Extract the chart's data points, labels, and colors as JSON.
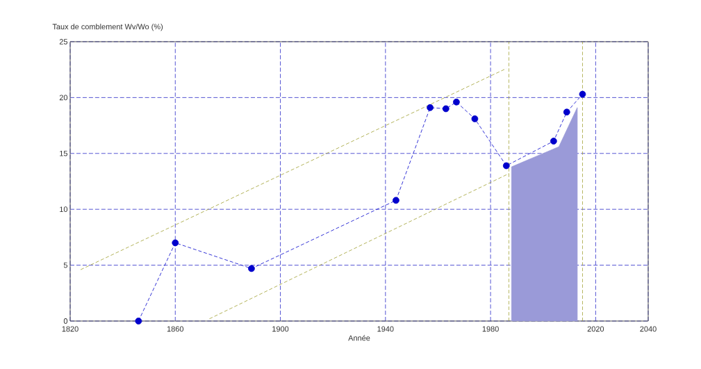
{
  "chart_data": {
    "type": "line",
    "xlabel": "Année",
    "ylabel": "Taux de comblement Wv/Wo (%)",
    "xlim": [
      1820,
      2040
    ],
    "ylim": [
      0,
      25
    ],
    "xticks": [
      1820,
      1860,
      1900,
      1940,
      1980,
      2020,
      2040
    ],
    "yticks": [
      0,
      5,
      10,
      15,
      20,
      25
    ],
    "grid": true,
    "series": [
      {
        "type": "area",
        "color": "#9a9ad8",
        "x": [
          1988,
          2006,
          2013
        ],
        "values": [
          13.8,
          15.6,
          19.1
        ]
      },
      {
        "color": "#a0a030",
        "line_style": "dashed",
        "marker": "none",
        "x": [
          1824,
          1986
        ],
        "values": [
          4.6,
          22.6
        ]
      },
      {
        "color": "#a0a030",
        "line_style": "dashed",
        "marker": "none",
        "x": [
          1873,
          1987
        ],
        "values": [
          0.2,
          13.2
        ]
      },
      {
        "color": "#0000cc",
        "line_style": "dashed",
        "marker": "circle",
        "x": [
          1846,
          1860,
          1889,
          1944,
          1957,
          1963,
          1967,
          1974,
          1986,
          2004,
          2009,
          2015
        ],
        "values": [
          0,
          7,
          4.7,
          10.8,
          19.1,
          19.0,
          19.6,
          18.1,
          13.9,
          16.1,
          18.7,
          20.3
        ]
      }
    ],
    "ref_lines": [
      {
        "axis": "x",
        "value": 1987,
        "color": "#a0a030",
        "line_style": "dashed"
      },
      {
        "axis": "x",
        "value": 2015,
        "color": "#a0a030",
        "line_style": "dashed"
      }
    ]
  }
}
